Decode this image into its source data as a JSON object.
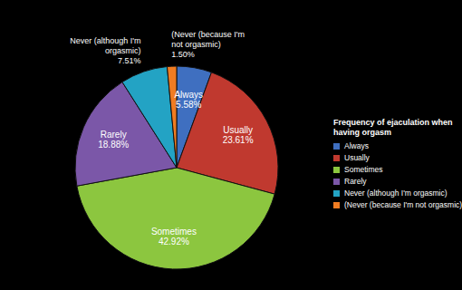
{
  "chart_data": {
    "type": "pie",
    "title": "Frequency of ejaculation when having orgasm",
    "categories": [
      "Always",
      "Usually",
      "Sometimes",
      "Rarely",
      "Never (although I'm orgasmic)",
      "(Never (because I'm not orgasmic)"
    ],
    "values": [
      5.58,
      23.61,
      42.92,
      18.88,
      7.51,
      1.5
    ],
    "value_labels": [
      "5.58%",
      "23.61%",
      "42.92%",
      "18.88%",
      "7.51%",
      "1.50%"
    ],
    "colors": [
      "#3f6fc0",
      "#c0392f",
      "#8cc63f",
      "#7b57a8",
      "#23a3c4",
      "#f07c22"
    ],
    "legend": "right",
    "data_labels": true
  }
}
